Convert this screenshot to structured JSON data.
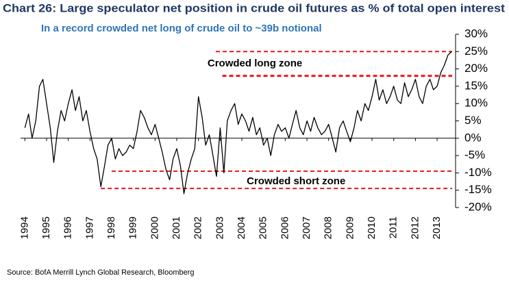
{
  "chart_data": {
    "type": "line",
    "title": "Chart 26: Large speculator net position in crude oil futures as % of total open interest",
    "subtitle": "In a record crowded net long of crude oil to ~39b notional",
    "source": "Source: BofA Merrill Lynch Global Research, Bloomberg",
    "color": "#000000",
    "x": [
      1994.0,
      1994.17,
      1994.33,
      1994.5,
      1994.67,
      1994.83,
      1995.0,
      1995.17,
      1995.33,
      1995.5,
      1995.67,
      1995.83,
      1996.0,
      1996.17,
      1996.33,
      1996.5,
      1996.67,
      1996.83,
      1997.0,
      1997.17,
      1997.33,
      1997.5,
      1997.67,
      1997.83,
      1998.0,
      1998.17,
      1998.33,
      1998.5,
      1998.67,
      1998.83,
      1999.0,
      1999.17,
      1999.33,
      1999.5,
      1999.67,
      1999.83,
      2000.0,
      2000.17,
      2000.33,
      2000.5,
      2000.67,
      2000.83,
      2001.0,
      2001.17,
      2001.33,
      2001.5,
      2001.67,
      2001.83,
      2002.0,
      2002.17,
      2002.33,
      2002.5,
      2002.67,
      2002.83,
      2003.0,
      2003.17,
      2003.33,
      2003.5,
      2003.67,
      2003.83,
      2004.0,
      2004.17,
      2004.33,
      2004.5,
      2004.67,
      2004.83,
      2005.0,
      2005.17,
      2005.33,
      2005.5,
      2005.67,
      2005.83,
      2006.0,
      2006.17,
      2006.33,
      2006.5,
      2006.67,
      2006.83,
      2007.0,
      2007.17,
      2007.33,
      2007.5,
      2007.67,
      2007.83,
      2008.0,
      2008.17,
      2008.33,
      2008.5,
      2008.67,
      2008.83,
      2009.0,
      2009.17,
      2009.33,
      2009.5,
      2009.67,
      2009.83,
      2010.0,
      2010.17,
      2010.33,
      2010.5,
      2010.67,
      2010.83,
      2011.0,
      2011.17,
      2011.33,
      2011.5,
      2011.67,
      2011.83,
      2012.0,
      2012.17,
      2012.33,
      2012.5,
      2012.67,
      2012.83,
      2013.0,
      2013.17,
      2013.33,
      2013.5,
      2013.67
    ],
    "values": [
      3,
      7,
      0,
      5,
      15,
      17,
      10,
      3,
      -7,
      2,
      8,
      5,
      10,
      14,
      8,
      12,
      5,
      8,
      2,
      -3,
      -6,
      -14,
      -8,
      -2,
      0,
      -6,
      -3,
      -5,
      -4,
      -2,
      -3,
      2,
      8,
      6,
      3,
      1,
      4,
      0,
      -4,
      -9,
      -12,
      -6,
      -3,
      -8,
      -16,
      -10,
      -6,
      -3,
      12,
      6,
      -2,
      1,
      -5,
      -11,
      3,
      -10,
      5,
      8,
      10,
      4,
      7,
      5,
      2,
      6,
      1,
      3,
      -2,
      0,
      -5,
      1,
      4,
      2,
      3,
      0,
      4,
      8,
      3,
      1,
      5,
      2,
      6,
      3,
      1,
      2,
      4,
      0,
      -4,
      3,
      5,
      2,
      -1,
      3,
      8,
      5,
      10,
      8,
      12,
      17,
      11,
      14,
      10,
      12,
      15,
      11,
      10,
      16,
      12,
      14,
      17,
      12,
      10,
      15,
      17,
      14,
      15,
      19,
      21,
      24,
      25
    ],
    "xlim": [
      1993.8,
      2013.85
    ],
    "xticks": [
      1994,
      1995,
      1996,
      1997,
      1998,
      1999,
      2000,
      2001,
      2002,
      2003,
      2004,
      2005,
      2006,
      2007,
      2008,
      2009,
      2010,
      2011,
      2012,
      2013
    ],
    "ylim": [
      -20,
      30
    ],
    "yticks": [
      {
        "value": 30,
        "label": "30%"
      },
      {
        "value": 25,
        "label": "25%"
      },
      {
        "value": 20,
        "label": "20%"
      },
      {
        "value": 15,
        "label": "15%"
      },
      {
        "value": 10,
        "label": "10%"
      },
      {
        "value": 5,
        "label": "5%"
      },
      {
        "value": 0,
        "label": "0%"
      },
      {
        "value": -5,
        "label": "-5%"
      },
      {
        "value": -10,
        "label": "-10%"
      },
      {
        "value": -15,
        "label": "-15%"
      },
      {
        "value": -20,
        "label": "-20%"
      }
    ],
    "reference_lines": [
      {
        "value": 25,
        "from": 2002.8,
        "color": "#e8141b"
      },
      {
        "value": 18,
        "from": 2003.1,
        "color": "#e8141b"
      },
      {
        "value": -9.5,
        "from": 1998.0,
        "color": "#e8141b"
      },
      {
        "value": -14.5,
        "from": 1997.5,
        "color": "#e8141b"
      }
    ],
    "annotations": [
      {
        "text": "Crowded long zone",
        "x": 2004.6,
        "y": 21.5
      },
      {
        "text": "Crowded short zone",
        "x": 2006.5,
        "y": -12.5
      }
    ]
  }
}
